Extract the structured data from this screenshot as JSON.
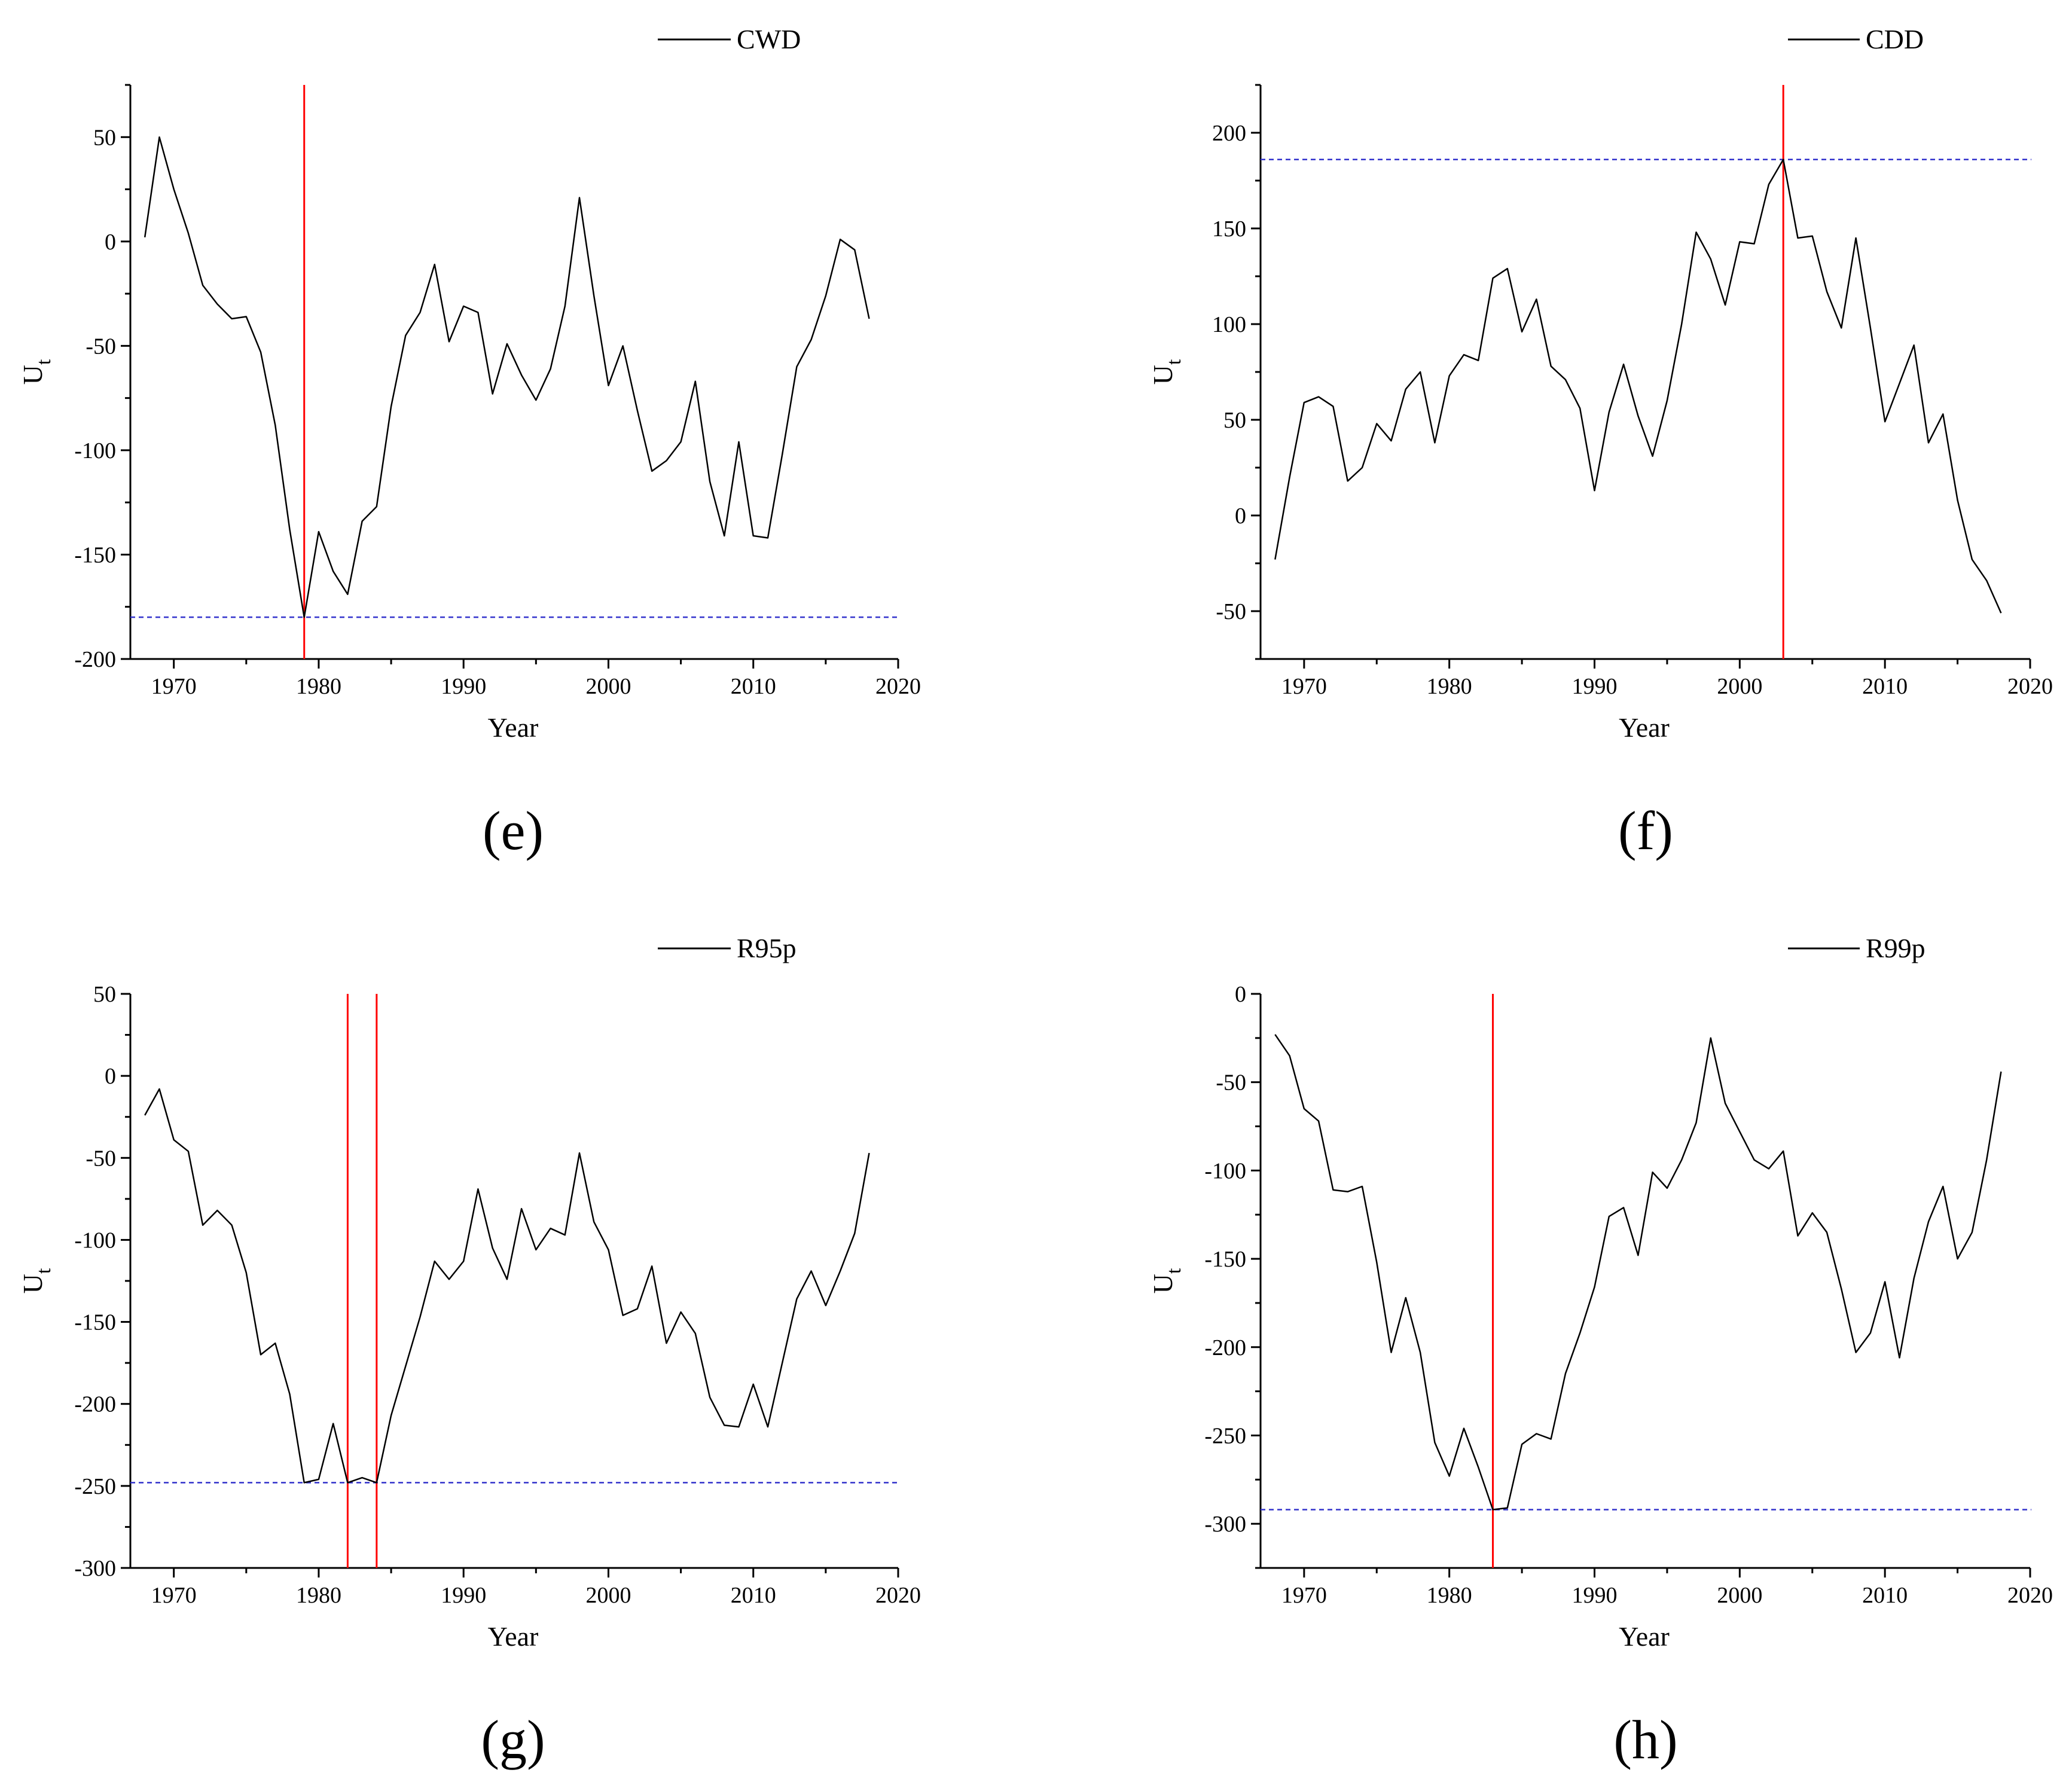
{
  "chart_data": [
    {
      "type": "line",
      "panel_label": "(e)",
      "xlabel": "Year",
      "ylabel": "U",
      "ylabel_sub": "t",
      "xlim": [
        1967,
        2020
      ],
      "ylim": [
        -200,
        75
      ],
      "xticks": [
        1970,
        1980,
        1990,
        2000,
        2010,
        2020
      ],
      "yticks": [
        50,
        0,
        -50,
        -100,
        -150,
        -200
      ],
      "legend": "top-right",
      "threshold_line": -180,
      "change_points": [
        1979
      ],
      "series": [
        {
          "name": "CWD",
          "x": [
            1968,
            1969,
            1970,
            1971,
            1972,
            1973,
            1974,
            1975,
            1976,
            1977,
            1978,
            1979,
            1980,
            1981,
            1982,
            1983,
            1984,
            1985,
            1986,
            1987,
            1988,
            1989,
            1990,
            1991,
            1992,
            1993,
            1994,
            1995,
            1996,
            1997,
            1998,
            1999,
            2000,
            2001,
            2002,
            2003,
            2004,
            2005,
            2006,
            2007,
            2008,
            2009,
            2010,
            2011,
            2012,
            2013,
            2014,
            2015,
            2016,
            2017,
            2018
          ],
          "y": [
            2,
            50,
            25,
            4,
            -21,
            -30,
            -37,
            -36,
            -53,
            -88,
            -138,
            -180,
            -139,
            -158,
            -169,
            -134,
            -127,
            -79,
            -45,
            -34,
            -11,
            -48,
            -31,
            -34,
            -73,
            -49,
            -64,
            -76,
            -61,
            -31,
            21,
            -26,
            -69,
            -50,
            -81,
            -110,
            -105,
            -96,
            -67,
            -115,
            -141,
            -96,
            -141,
            -142,
            -102,
            -60,
            -47,
            -26,
            1,
            -4,
            -37
          ]
        }
      ],
      "colors": {
        "series": "#000000",
        "change_point": "#ff0000",
        "threshold": "#3333cc"
      }
    },
    {
      "type": "line",
      "panel_label": "(f)",
      "xlabel": "Year",
      "ylabel": "U",
      "ylabel_sub": "t",
      "xlim": [
        1967,
        2020
      ],
      "ylim": [
        -75,
        225
      ],
      "xticks": [
        1970,
        1980,
        1990,
        2000,
        2010,
        2020
      ],
      "yticks": [
        200,
        150,
        100,
        50,
        0,
        -50
      ],
      "legend": "top-right",
      "threshold_line": 186,
      "change_points": [
        2003
      ],
      "series": [
        {
          "name": "CDD",
          "x": [
            1968,
            1969,
            1970,
            1971,
            1972,
            1973,
            1974,
            1975,
            1976,
            1977,
            1978,
            1979,
            1980,
            1981,
            1982,
            1983,
            1984,
            1985,
            1986,
            1987,
            1988,
            1989,
            1990,
            1991,
            1992,
            1993,
            1994,
            1995,
            1996,
            1997,
            1998,
            1999,
            2000,
            2001,
            2002,
            2003,
            2004,
            2005,
            2006,
            2007,
            2008,
            2009,
            2010,
            2011,
            2012,
            2013,
            2014,
            2015,
            2016,
            2017,
            2018
          ],
          "y": [
            -23,
            20,
            59,
            62,
            57,
            18,
            25,
            48,
            39,
            66,
            75,
            38,
            73,
            84,
            81,
            124,
            129,
            96,
            113,
            78,
            71,
            56,
            13,
            54,
            79,
            52,
            31,
            60,
            100,
            148,
            134,
            110,
            143,
            142,
            173,
            186,
            145,
            146,
            117,
            98,
            145,
            98,
            49,
            69,
            89,
            38,
            53,
            8,
            -23,
            -34,
            -51
          ]
        }
      ],
      "colors": {
        "series": "#000000",
        "change_point": "#ff0000",
        "threshold": "#3333cc"
      }
    },
    {
      "type": "line",
      "panel_label": "(g)",
      "xlabel": "Year",
      "ylabel": "U",
      "ylabel_sub": "t",
      "xlim": [
        1967,
        2020
      ],
      "ylim": [
        -300,
        50
      ],
      "xticks": [
        1970,
        1980,
        1990,
        2000,
        2010,
        2020
      ],
      "yticks": [
        50,
        0,
        -50,
        -100,
        -150,
        -200,
        -250,
        -300
      ],
      "legend": "top-right",
      "threshold_line": -248,
      "change_points": [
        1982,
        1984
      ],
      "series": [
        {
          "name": "R95p",
          "x": [
            1968,
            1969,
            1970,
            1971,
            1972,
            1973,
            1974,
            1975,
            1976,
            1977,
            1978,
            1979,
            1980,
            1981,
            1982,
            1983,
            1984,
            1985,
            1986,
            1987,
            1988,
            1989,
            1990,
            1991,
            1992,
            1993,
            1994,
            1995,
            1996,
            1997,
            1998,
            1999,
            2000,
            2001,
            2002,
            2003,
            2004,
            2005,
            2006,
            2007,
            2008,
            2009,
            2010,
            2011,
            2012,
            2013,
            2014,
            2015,
            2016,
            2017,
            2018
          ],
          "y": [
            -24,
            -8,
            -39,
            -46,
            -91,
            -82,
            -91,
            -120,
            -170,
            -163,
            -194,
            -248,
            -246,
            -212,
            -248,
            -245,
            -248,
            -207,
            -177,
            -147,
            -113,
            -124,
            -113,
            -69,
            -105,
            -124,
            -81,
            -106,
            -93,
            -97,
            -47,
            -89,
            -106,
            -146,
            -142,
            -116,
            -163,
            -144,
            -157,
            -196,
            -213,
            -214,
            -188,
            -214,
            -175,
            -136,
            -119,
            -140,
            -119,
            -96,
            -47
          ]
        }
      ],
      "colors": {
        "series": "#000000",
        "change_point": "#ff0000",
        "threshold": "#3333cc"
      }
    },
    {
      "type": "line",
      "panel_label": "(h)",
      "xlabel": "Year",
      "ylabel": "U",
      "ylabel_sub": "t",
      "xlim": [
        1967,
        2020
      ],
      "ylim": [
        -325,
        0
      ],
      "xticks": [
        1970,
        1980,
        1990,
        2000,
        2010,
        2020
      ],
      "yticks": [
        0,
        -50,
        -100,
        -150,
        -200,
        -250,
        -300
      ],
      "legend": "top-right",
      "threshold_line": -292,
      "change_points": [
        1983
      ],
      "series": [
        {
          "name": "R99p",
          "x": [
            1968,
            1969,
            1970,
            1971,
            1972,
            1973,
            1974,
            1975,
            1976,
            1977,
            1978,
            1979,
            1980,
            1981,
            1982,
            1983,
            1984,
            1985,
            1986,
            1987,
            1988,
            1989,
            1990,
            1991,
            1992,
            1993,
            1994,
            1995,
            1996,
            1997,
            1998,
            1999,
            2000,
            2001,
            2002,
            2003,
            2004,
            2005,
            2006,
            2007,
            2008,
            2009,
            2010,
            2011,
            2012,
            2013,
            2014,
            2015,
            2016,
            2017,
            2018
          ],
          "y": [
            -23,
            -35,
            -65,
            -72,
            -111,
            -112,
            -109,
            -152,
            -203,
            -172,
            -203,
            -254,
            -273,
            -246,
            -268,
            -292,
            -291,
            -255,
            -249,
            -252,
            -215,
            -192,
            -166,
            -126,
            -121,
            -148,
            -101,
            -110,
            -94,
            -73,
            -25,
            -62,
            -78,
            -94,
            -99,
            -89,
            -137,
            -124,
            -135,
            -167,
            -203,
            -192,
            -163,
            -206,
            -161,
            -129,
            -109,
            -150,
            -135,
            -94,
            -44
          ]
        }
      ],
      "colors": {
        "series": "#000000",
        "change_point": "#ff0000",
        "threshold": "#3333cc"
      }
    }
  ]
}
